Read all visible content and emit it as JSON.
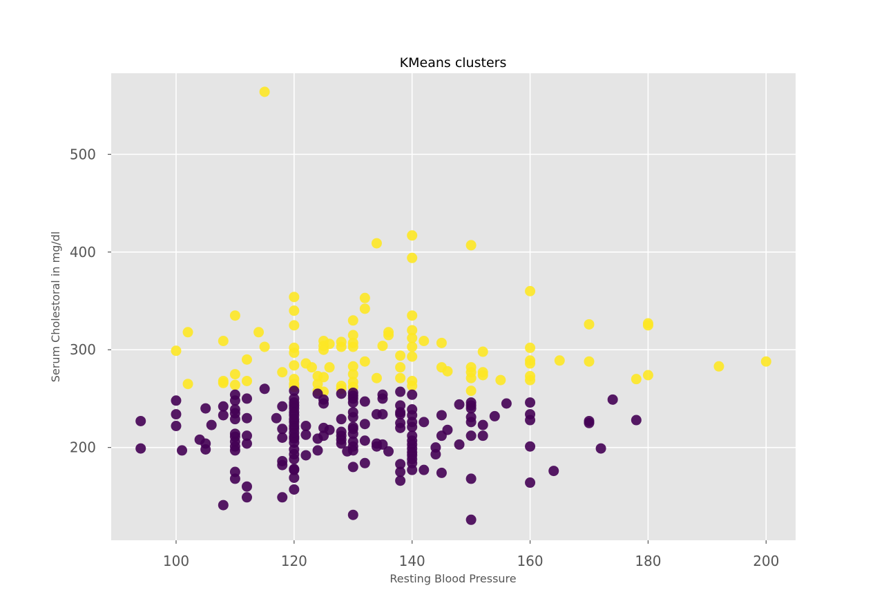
{
  "chart_data": {
    "type": "scatter",
    "title": "KMeans clusters",
    "xlabel": "Resting Blood Pressure",
    "ylabel": "Serum Cholestoral in mg/dl",
    "xlim": [
      89,
      205
    ],
    "ylim": [
      105,
      583
    ],
    "grid": true,
    "x_ticks": [
      100,
      120,
      140,
      160,
      180,
      200
    ],
    "y_ticks": [
      200,
      300,
      400,
      500
    ],
    "x_tick_labels": [
      "100",
      "120",
      "140",
      "160",
      "180",
      "200"
    ],
    "y_tick_labels": [
      "200",
      "300",
      "400",
      "500"
    ],
    "colors": {
      "cluster_0": "#440154",
      "cluster_1": "#fde725",
      "plot_bg": "#e5e5e5",
      "grid": "#ffffff"
    },
    "series": [
      {
        "cluster": 1,
        "color": "#fde725",
        "points": [
          [
            115,
            564
          ],
          [
            140,
            417
          ],
          [
            134,
            409
          ],
          [
            150,
            407
          ],
          [
            140,
            394
          ],
          [
            160,
            360
          ],
          [
            120,
            354
          ],
          [
            132,
            353
          ],
          [
            132,
            342
          ],
          [
            120,
            340
          ],
          [
            110,
            335
          ],
          [
            140,
            335
          ],
          [
            130,
            330
          ],
          [
            170,
            326
          ],
          [
            180,
            327
          ],
          [
            180,
            325
          ],
          [
            120,
            325
          ],
          [
            102,
            318
          ],
          [
            114,
            318
          ],
          [
            136,
            318
          ],
          [
            136,
            315
          ],
          [
            130,
            315
          ],
          [
            140,
            320
          ],
          [
            140,
            312
          ],
          [
            108,
            309
          ],
          [
            125,
            309
          ],
          [
            126,
            306
          ],
          [
            128,
            308
          ],
          [
            125,
            304
          ],
          [
            130,
            303
          ],
          [
            130,
            307
          ],
          [
            135,
            304
          ],
          [
            142,
            309
          ],
          [
            145,
            307
          ],
          [
            115,
            303
          ],
          [
            120,
            302
          ],
          [
            140,
            303
          ],
          [
            160,
            302
          ],
          [
            100,
            299
          ],
          [
            120,
            297
          ],
          [
            125,
            300
          ],
          [
            128,
            303
          ],
          [
            138,
            294
          ],
          [
            140,
            293
          ],
          [
            152,
            298
          ],
          [
            112,
            290
          ],
          [
            132,
            288
          ],
          [
            160,
            289
          ],
          [
            160,
            286
          ],
          [
            165,
            289
          ],
          [
            170,
            288
          ],
          [
            200,
            288
          ],
          [
            120,
            284
          ],
          [
            122,
            286
          ],
          [
            123,
            282
          ],
          [
            126,
            282
          ],
          [
            130,
            283
          ],
          [
            138,
            282
          ],
          [
            145,
            282
          ],
          [
            146,
            278
          ],
          [
            150,
            282
          ],
          [
            150,
            277
          ],
          [
            152,
            277
          ],
          [
            152,
            274
          ],
          [
            192,
            283
          ],
          [
            110,
            275
          ],
          [
            118,
            277
          ],
          [
            124,
            273
          ],
          [
            125,
            272
          ],
          [
            130,
            275
          ],
          [
            134,
            271
          ],
          [
            138,
            271
          ],
          [
            150,
            271
          ],
          [
            160,
            273
          ],
          [
            160,
            269
          ],
          [
            155,
            269
          ],
          [
            178,
            270
          ],
          [
            180,
            274
          ],
          [
            102,
            265
          ],
          [
            108,
            268
          ],
          [
            108,
            266
          ],
          [
            110,
            264
          ],
          [
            112,
            268
          ],
          [
            120,
            270
          ],
          [
            120,
            265
          ],
          [
            120,
            262
          ],
          [
            124,
            265
          ],
          [
            125,
            257
          ],
          [
            128,
            263
          ],
          [
            128,
            260
          ],
          [
            130,
            262
          ],
          [
            130,
            267
          ],
          [
            140,
            268
          ],
          [
            140,
            263
          ],
          [
            150,
            258
          ],
          [
            124,
            258
          ]
        ]
      },
      {
        "cluster": 0,
        "color": "#440154",
        "points": [
          [
            94,
            227
          ],
          [
            94,
            199
          ],
          [
            100,
            248
          ],
          [
            100,
            234
          ],
          [
            100,
            222
          ],
          [
            101,
            197
          ],
          [
            104,
            208
          ],
          [
            105,
            240
          ],
          [
            105,
            204
          ],
          [
            105,
            198
          ],
          [
            106,
            223
          ],
          [
            108,
            242
          ],
          [
            108,
            233
          ],
          [
            108,
            141
          ],
          [
            110,
            254
          ],
          [
            110,
            248
          ],
          [
            110,
            239
          ],
          [
            110,
            235
          ],
          [
            110,
            229
          ],
          [
            110,
            214
          ],
          [
            110,
            211
          ],
          [
            110,
            206
          ],
          [
            110,
            201
          ],
          [
            110,
            197
          ],
          [
            110,
            175
          ],
          [
            110,
            168
          ],
          [
            112,
            250
          ],
          [
            112,
            230
          ],
          [
            112,
            212
          ],
          [
            112,
            204
          ],
          [
            112,
            160
          ],
          [
            112,
            149
          ],
          [
            115,
            260
          ],
          [
            117,
            230
          ],
          [
            118,
            242
          ],
          [
            118,
            219
          ],
          [
            118,
            210
          ],
          [
            118,
            186
          ],
          [
            118,
            182
          ],
          [
            118,
            149
          ],
          [
            120,
            258
          ],
          [
            120,
            250
          ],
          [
            120,
            246
          ],
          [
            120,
            243
          ],
          [
            120,
            240
          ],
          [
            120,
            236
          ],
          [
            120,
            233
          ],
          [
            120,
            229
          ],
          [
            120,
            226
          ],
          [
            120,
            222
          ],
          [
            120,
            219
          ],
          [
            120,
            215
          ],
          [
            120,
            211
          ],
          [
            120,
            209
          ],
          [
            120,
            205
          ],
          [
            120,
            198
          ],
          [
            120,
            193
          ],
          [
            120,
            188
          ],
          [
            120,
            178
          ],
          [
            120,
            177
          ],
          [
            120,
            169
          ],
          [
            120,
            157
          ],
          [
            122,
            222
          ],
          [
            122,
            213
          ],
          [
            122,
            192
          ],
          [
            124,
            255
          ],
          [
            124,
            209
          ],
          [
            124,
            197
          ],
          [
            125,
            249
          ],
          [
            125,
            245
          ],
          [
            125,
            220
          ],
          [
            125,
            212
          ],
          [
            126,
            218
          ],
          [
            128,
            255
          ],
          [
            128,
            229
          ],
          [
            128,
            216
          ],
          [
            128,
            212
          ],
          [
            128,
            208
          ],
          [
            128,
            204
          ],
          [
            129,
            196
          ],
          [
            130,
            256
          ],
          [
            130,
            253
          ],
          [
            130,
            250
          ],
          [
            130,
            246
          ],
          [
            130,
            236
          ],
          [
            130,
            231
          ],
          [
            130,
            221
          ],
          [
            130,
            219
          ],
          [
            130,
            214
          ],
          [
            130,
            206
          ],
          [
            130,
            201
          ],
          [
            130,
            197
          ],
          [
            130,
            180
          ],
          [
            130,
            131
          ],
          [
            132,
            247
          ],
          [
            132,
            224
          ],
          [
            132,
            207
          ],
          [
            132,
            184
          ],
          [
            134,
            234
          ],
          [
            134,
            204
          ],
          [
            134,
            201
          ],
          [
            135,
            254
          ],
          [
            135,
            250
          ],
          [
            135,
            234
          ],
          [
            135,
            203
          ],
          [
            136,
            196
          ],
          [
            138,
            257
          ],
          [
            138,
            243
          ],
          [
            138,
            236
          ],
          [
            138,
            234
          ],
          [
            138,
            225
          ],
          [
            138,
            220
          ],
          [
            138,
            183
          ],
          [
            138,
            175
          ],
          [
            138,
            166
          ],
          [
            140,
            254
          ],
          [
            140,
            239
          ],
          [
            140,
            233
          ],
          [
            140,
            226
          ],
          [
            140,
            221
          ],
          [
            140,
            212
          ],
          [
            140,
            207
          ],
          [
            140,
            203
          ],
          [
            140,
            199
          ],
          [
            140,
            195
          ],
          [
            140,
            192
          ],
          [
            140,
            188
          ],
          [
            140,
            184
          ],
          [
            140,
            177
          ],
          [
            142,
            226
          ],
          [
            142,
            177
          ],
          [
            144,
            200
          ],
          [
            144,
            193
          ],
          [
            145,
            233
          ],
          [
            145,
            212
          ],
          [
            145,
            174
          ],
          [
            146,
            218
          ],
          [
            148,
            244
          ],
          [
            148,
            203
          ],
          [
            150,
            246
          ],
          [
            150,
            243
          ],
          [
            150,
            240
          ],
          [
            150,
            231
          ],
          [
            150,
            226
          ],
          [
            150,
            212
          ],
          [
            150,
            168
          ],
          [
            150,
            126
          ],
          [
            152,
            223
          ],
          [
            152,
            212
          ],
          [
            154,
            232
          ],
          [
            156,
            245
          ],
          [
            160,
            246
          ],
          [
            160,
            234
          ],
          [
            160,
            228
          ],
          [
            160,
            201
          ],
          [
            160,
            164
          ],
          [
            164,
            176
          ],
          [
            170,
            227
          ],
          [
            170,
            225
          ],
          [
            172,
            199
          ],
          [
            174,
            249
          ],
          [
            178,
            228
          ]
        ]
      }
    ]
  }
}
